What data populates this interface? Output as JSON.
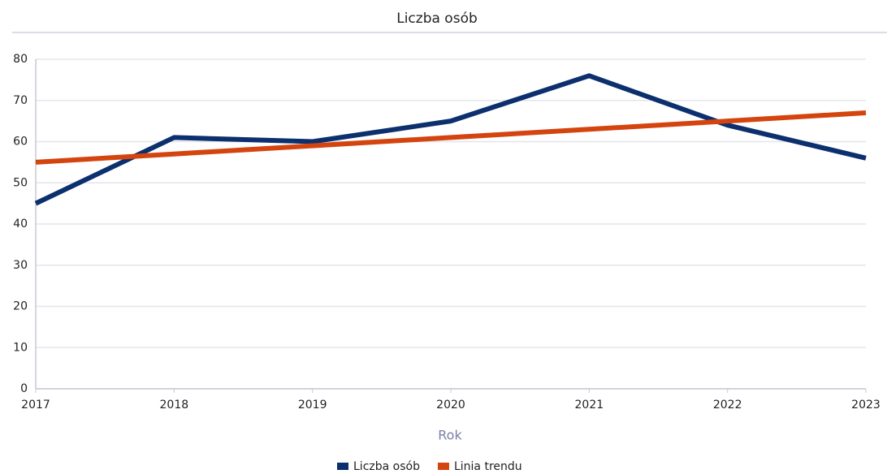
{
  "chart_data": {
    "type": "line",
    "title": "Liczba osób",
    "x_label": "Rok",
    "x": [
      2017,
      2018,
      2019,
      2020,
      2021,
      2022,
      2023
    ],
    "xlim": [
      2017,
      2023
    ],
    "xticks": [
      2017,
      2018,
      2019,
      2020,
      2021,
      2022,
      2023
    ],
    "ylim": [
      0,
      80
    ],
    "yticks": [
      0,
      10,
      20,
      30,
      40,
      50,
      60,
      70,
      80
    ],
    "grid": true,
    "legend": "bottom",
    "series": [
      {
        "name": "Liczba osób",
        "color": "#0c2f6e",
        "values": [
          45,
          61,
          60,
          65,
          76,
          64,
          56
        ]
      },
      {
        "name": "Linia trendu",
        "color": "#d4440f",
        "values": [
          55,
          57,
          59,
          61,
          63,
          65,
          67
        ]
      }
    ]
  }
}
